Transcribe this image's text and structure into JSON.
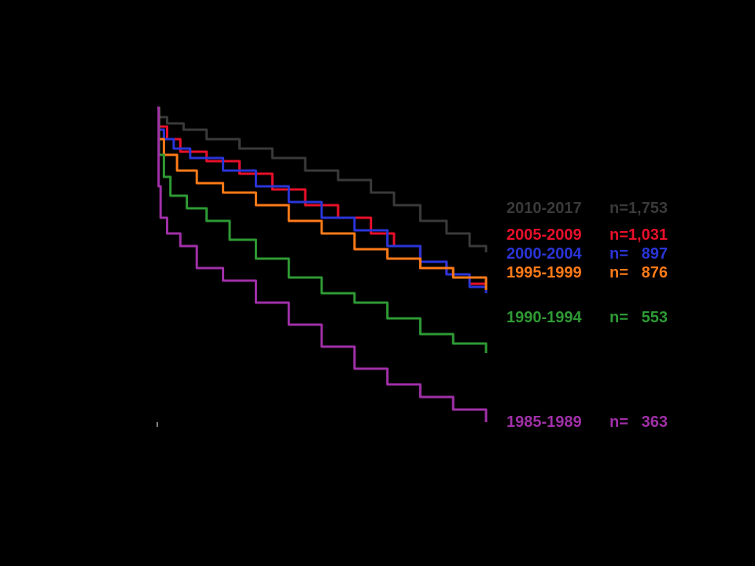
{
  "chart_data": {
    "type": "line",
    "title": "",
    "xlabel": "",
    "ylabel": "",
    "background": "#000000",
    "axis_color": "#000000",
    "xlim": [
      0,
      1
    ],
    "ylim": [
      0,
      1
    ],
    "grid": false,
    "legend_placement": "right",
    "series": [
      {
        "name": "2010-2017",
        "n_label": "n=1,753",
        "color": "#3a3a3a",
        "points": [
          [
            0,
            1
          ],
          [
            0.005,
            0.97
          ],
          [
            0.03,
            0.95
          ],
          [
            0.08,
            0.93
          ],
          [
            0.15,
            0.9
          ],
          [
            0.25,
            0.87
          ],
          [
            0.35,
            0.84
          ],
          [
            0.45,
            0.8
          ],
          [
            0.55,
            0.77
          ],
          [
            0.65,
            0.73
          ],
          [
            0.72,
            0.69
          ],
          [
            0.8,
            0.64
          ],
          [
            0.88,
            0.6
          ],
          [
            0.95,
            0.56
          ],
          [
            1.0,
            0.54
          ]
        ]
      },
      {
        "name": "2005-2009",
        "n_label": "n=1,031",
        "color": "#e8102a",
        "points": [
          [
            0,
            1
          ],
          [
            0.005,
            0.94
          ],
          [
            0.03,
            0.9
          ],
          [
            0.07,
            0.86
          ],
          [
            0.15,
            0.83
          ],
          [
            0.25,
            0.79
          ],
          [
            0.35,
            0.74
          ],
          [
            0.45,
            0.69
          ],
          [
            0.55,
            0.65
          ],
          [
            0.65,
            0.6
          ],
          [
            0.72,
            0.56
          ],
          [
            0.8,
            0.51
          ],
          [
            0.88,
            0.47
          ],
          [
            0.95,
            0.44
          ],
          [
            1.0,
            0.42
          ]
        ]
      },
      {
        "name": "2000-2004",
        "n_label": "n=   897",
        "color": "#2a35d8",
        "points": [
          [
            0,
            1
          ],
          [
            0.005,
            0.93
          ],
          [
            0.02,
            0.9
          ],
          [
            0.05,
            0.87
          ],
          [
            0.1,
            0.84
          ],
          [
            0.2,
            0.8
          ],
          [
            0.3,
            0.75
          ],
          [
            0.4,
            0.7
          ],
          [
            0.5,
            0.65
          ],
          [
            0.6,
            0.61
          ],
          [
            0.7,
            0.56
          ],
          [
            0.8,
            0.51
          ],
          [
            0.88,
            0.47
          ],
          [
            0.95,
            0.43
          ],
          [
            1.0,
            0.41
          ]
        ]
      },
      {
        "name": "1995-1999",
        "n_label": "n=   876",
        "color": "#ff7a18",
        "points": [
          [
            0,
            1
          ],
          [
            0.005,
            0.9
          ],
          [
            0.02,
            0.85
          ],
          [
            0.06,
            0.8
          ],
          [
            0.12,
            0.76
          ],
          [
            0.2,
            0.73
          ],
          [
            0.3,
            0.69
          ],
          [
            0.4,
            0.64
          ],
          [
            0.5,
            0.6
          ],
          [
            0.6,
            0.55
          ],
          [
            0.7,
            0.52
          ],
          [
            0.8,
            0.49
          ],
          [
            0.9,
            0.46
          ],
          [
            1.0,
            0.42
          ]
        ]
      },
      {
        "name": "1990-1994",
        "n_label": "n=   553",
        "color": "#2e9a34",
        "points": [
          [
            0,
            1
          ],
          [
            0.005,
            0.85
          ],
          [
            0.02,
            0.78
          ],
          [
            0.04,
            0.72
          ],
          [
            0.09,
            0.68
          ],
          [
            0.15,
            0.64
          ],
          [
            0.22,
            0.58
          ],
          [
            0.3,
            0.52
          ],
          [
            0.4,
            0.46
          ],
          [
            0.5,
            0.41
          ],
          [
            0.6,
            0.38
          ],
          [
            0.7,
            0.33
          ],
          [
            0.8,
            0.28
          ],
          [
            0.9,
            0.25
          ],
          [
            1.0,
            0.22
          ]
        ]
      },
      {
        "name": "1985-1989",
        "n_label": "n=   363",
        "color": "#a030a8",
        "points": [
          [
            0,
            1
          ],
          [
            0.004,
            0.75
          ],
          [
            0.01,
            0.65
          ],
          [
            0.03,
            0.6
          ],
          [
            0.07,
            0.56
          ],
          [
            0.12,
            0.49
          ],
          [
            0.2,
            0.45
          ],
          [
            0.3,
            0.38
          ],
          [
            0.4,
            0.31
          ],
          [
            0.5,
            0.24
          ],
          [
            0.6,
            0.17
          ],
          [
            0.7,
            0.12
          ],
          [
            0.8,
            0.08
          ],
          [
            0.9,
            0.04
          ],
          [
            1.0,
            0.0
          ]
        ]
      }
    ]
  }
}
